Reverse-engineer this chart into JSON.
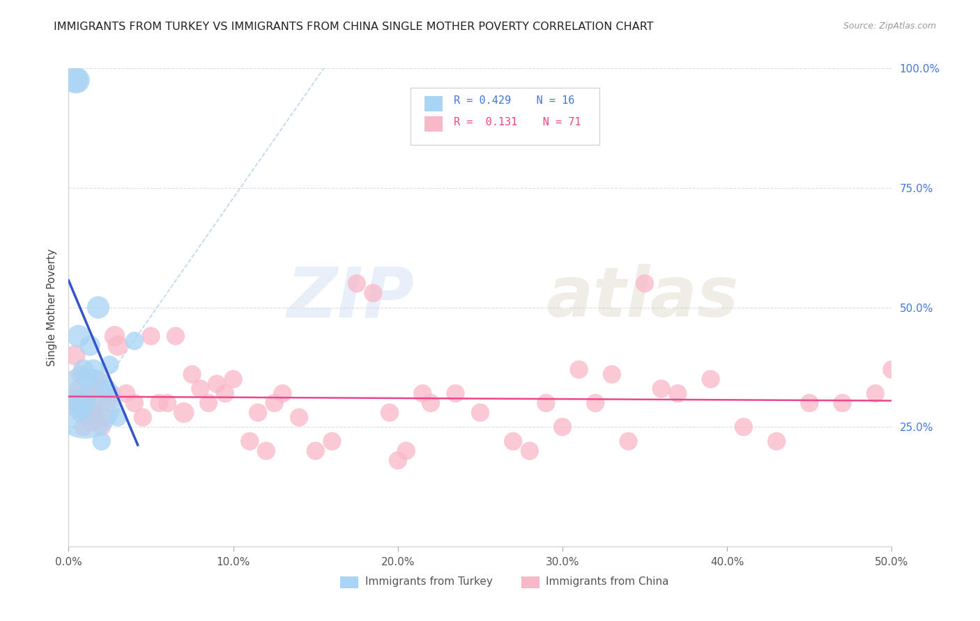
{
  "title": "IMMIGRANTS FROM TURKEY VS IMMIGRANTS FROM CHINA SINGLE MOTHER POVERTY CORRELATION CHART",
  "source": "Source: ZipAtlas.com",
  "ylabel": "Single Mother Poverty",
  "legend_label1": "Immigrants from Turkey",
  "legend_label2": "Immigrants from China",
  "r1": "0.429",
  "n1": "16",
  "r2": "0.131",
  "n2": "71",
  "xlim": [
    0.0,
    0.5
  ],
  "ylim": [
    0.0,
    1.0
  ],
  "xticks": [
    0.0,
    0.1,
    0.2,
    0.3,
    0.4,
    0.5
  ],
  "yticks_right": [
    0.25,
    0.5,
    0.75,
    1.0
  ],
  "color_turkey": "#A8D4F5",
  "color_china": "#F9B8C8",
  "trendline_turkey": "#3355CC",
  "trendline_china": "#EE4488",
  "turkey_x": [
    0.004,
    0.005,
    0.006,
    0.007,
    0.008,
    0.009,
    0.01,
    0.011,
    0.013,
    0.015,
    0.018,
    0.02,
    0.022,
    0.025,
    0.03,
    0.04
  ],
  "turkey_y": [
    0.975,
    0.975,
    0.44,
    0.28,
    0.3,
    0.37,
    0.3,
    0.35,
    0.42,
    0.37,
    0.5,
    0.22,
    0.33,
    0.38,
    0.27,
    0.43
  ],
  "turkey_size": [
    40,
    40,
    30,
    20,
    40,
    25,
    300,
    25,
    25,
    25,
    30,
    20,
    20,
    20,
    20,
    20
  ],
  "china_x": [
    0.003,
    0.004,
    0.005,
    0.006,
    0.007,
    0.008,
    0.009,
    0.01,
    0.011,
    0.012,
    0.013,
    0.014,
    0.015,
    0.016,
    0.017,
    0.018,
    0.02,
    0.022,
    0.024,
    0.026,
    0.028,
    0.03,
    0.035,
    0.04,
    0.045,
    0.05,
    0.055,
    0.06,
    0.065,
    0.07,
    0.075,
    0.08,
    0.085,
    0.09,
    0.095,
    0.1,
    0.11,
    0.115,
    0.12,
    0.125,
    0.13,
    0.14,
    0.15,
    0.16,
    0.175,
    0.185,
    0.195,
    0.205,
    0.22,
    0.235,
    0.25,
    0.27,
    0.29,
    0.31,
    0.33,
    0.35,
    0.37,
    0.39,
    0.41,
    0.43,
    0.45,
    0.47,
    0.49,
    0.5,
    0.34,
    0.36,
    0.28,
    0.3,
    0.32,
    0.2,
    0.215
  ],
  "china_y": [
    0.3,
    0.4,
    0.3,
    0.33,
    0.36,
    0.3,
    0.25,
    0.28,
    0.3,
    0.32,
    0.27,
    0.26,
    0.28,
    0.3,
    0.33,
    0.35,
    0.25,
    0.27,
    0.3,
    0.32,
    0.44,
    0.42,
    0.32,
    0.3,
    0.27,
    0.44,
    0.3,
    0.3,
    0.44,
    0.28,
    0.36,
    0.33,
    0.3,
    0.34,
    0.32,
    0.35,
    0.22,
    0.28,
    0.2,
    0.3,
    0.32,
    0.27,
    0.2,
    0.22,
    0.55,
    0.53,
    0.28,
    0.2,
    0.3,
    0.32,
    0.28,
    0.22,
    0.3,
    0.37,
    0.36,
    0.55,
    0.32,
    0.35,
    0.25,
    0.22,
    0.3,
    0.3,
    0.32,
    0.37,
    0.22,
    0.33,
    0.2,
    0.25,
    0.3,
    0.18,
    0.32
  ],
  "china_size": [
    40,
    25,
    20,
    20,
    20,
    20,
    20,
    20,
    20,
    20,
    20,
    20,
    20,
    20,
    20,
    20,
    20,
    20,
    20,
    20,
    25,
    25,
    20,
    20,
    20,
    20,
    20,
    20,
    20,
    25,
    20,
    20,
    20,
    20,
    20,
    20,
    20,
    20,
    20,
    20,
    20,
    20,
    20,
    20,
    20,
    20,
    20,
    20,
    20,
    20,
    20,
    20,
    20,
    20,
    20,
    20,
    20,
    20,
    20,
    20,
    20,
    20,
    20,
    20,
    20,
    20,
    20,
    20,
    20,
    20,
    20
  ],
  "ref_line_x": [
    0.0,
    0.155
  ],
  "ref_line_y": [
    0.235,
    1.0
  ],
  "watermark_zip": "ZIP",
  "watermark_atlas": "atlas",
  "background_color": "#FFFFFF",
  "grid_color": "#DDDDDD"
}
